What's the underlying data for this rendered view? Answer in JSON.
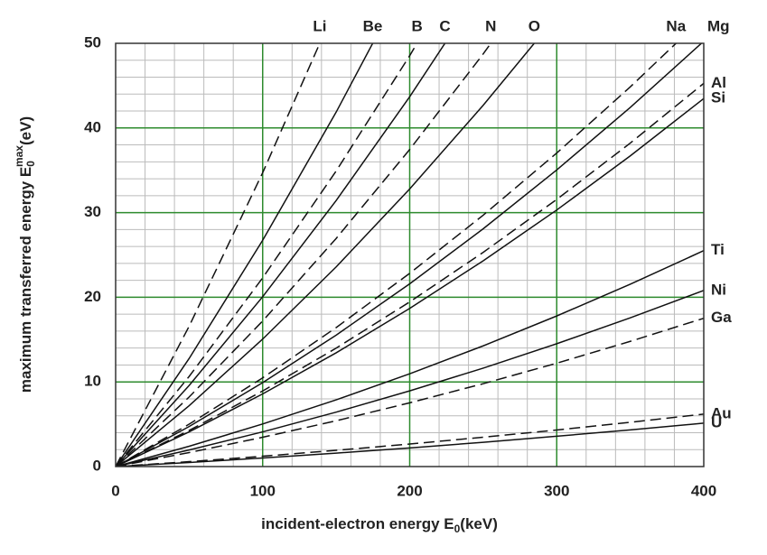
{
  "chart_data": {
    "type": "line",
    "xlabel": {
      "text": "incident-electron energy E",
      "sub": "0",
      "unit": "(keV)"
    },
    "ylabel": {
      "text": "maximum transferred energy E",
      "sub": "0",
      "sup": "max",
      "unit": "(eV)"
    },
    "xlim": [
      0,
      400
    ],
    "ylim": [
      0,
      50
    ],
    "xticks": [
      0,
      100,
      200,
      300,
      400
    ],
    "yticks": [
      0,
      10,
      20,
      30,
      40,
      50
    ],
    "grid": true,
    "grid_color": "#2e8b2e",
    "minor_grid": {
      "x": 20,
      "y": 2,
      "color": "#bbbbbb"
    },
    "series": [
      {
        "name": "Li",
        "color": "#111111",
        "dashed": true,
        "x": [
          0,
          50,
          100,
          150
        ],
        "values": [
          0,
          16.58,
          34.71,
          54.39
        ]
      },
      {
        "name": "Be",
        "color": "#111111",
        "dashed": false,
        "x": [
          0,
          50,
          100,
          150,
          200
        ],
        "values": [
          0,
          12.77,
          26.73,
          41.88,
          58.23
        ]
      },
      {
        "name": "B",
        "color": "#111111",
        "dashed": true,
        "x": [
          0,
          50,
          100,
          150,
          200,
          250
        ],
        "values": [
          0,
          10.65,
          22.29,
          34.92,
          48.54,
          63.16
        ]
      },
      {
        "name": "C",
        "color": "#111111",
        "dashed": false,
        "x": [
          0,
          50,
          100,
          150,
          200,
          250
        ],
        "values": [
          0,
          9.58,
          20.06,
          31.43,
          43.69,
          56.85
        ]
      },
      {
        "name": "N",
        "color": "#111111",
        "dashed": true,
        "x": [
          0,
          50,
          100,
          150,
          200,
          250,
          300
        ],
        "values": [
          0,
          8.22,
          17.2,
          26.95,
          37.46,
          48.75,
          60.79
        ]
      },
      {
        "name": "O",
        "color": "#111111",
        "dashed": false,
        "x": [
          0,
          50,
          100,
          150,
          200,
          250,
          300
        ],
        "values": [
          0,
          7.19,
          15.06,
          23.59,
          32.8,
          42.68,
          53.22
        ]
      },
      {
        "name": "Na",
        "color": "#111111",
        "dashed": true,
        "x": [
          0,
          50,
          100,
          150,
          200,
          250,
          300,
          350,
          400
        ],
        "values": [
          0,
          5.01,
          10.48,
          16.42,
          22.83,
          29.7,
          37.04,
          44.85,
          53.12
        ]
      },
      {
        "name": "Mg",
        "color": "#111111",
        "dashed": false,
        "x": [
          0,
          50,
          100,
          150,
          200,
          250,
          300,
          350,
          400
        ],
        "values": [
          0,
          4.73,
          9.91,
          15.53,
          21.59,
          28.09,
          35.04,
          42.42,
          50.25
        ]
      },
      {
        "name": "Al",
        "color": "#111111",
        "dashed": true,
        "x": [
          0,
          50,
          100,
          150,
          200,
          250,
          300,
          350,
          400
        ],
        "values": [
          0,
          4.27,
          8.93,
          13.99,
          19.45,
          25.31,
          31.56,
          38.21,
          45.27
        ]
      },
      {
        "name": "Si",
        "color": "#111111",
        "dashed": false,
        "x": [
          0,
          50,
          100,
          150,
          200,
          250,
          300,
          350,
          400
        ],
        "values": [
          0,
          4.1,
          8.58,
          13.44,
          18.68,
          24.31,
          30.31,
          36.7,
          43.48
        ]
      },
      {
        "name": "Ti",
        "color": "#111111",
        "dashed": false,
        "x": [
          0,
          50,
          100,
          150,
          200,
          250,
          300,
          350,
          400
        ],
        "values": [
          0,
          2.4,
          5.03,
          7.88,
          10.96,
          14.26,
          17.79,
          21.54,
          25.51
        ]
      },
      {
        "name": "Ni",
        "color": "#111111",
        "dashed": false,
        "x": [
          0,
          50,
          100,
          150,
          200,
          250,
          300,
          350,
          400
        ],
        "values": [
          0,
          1.96,
          4.1,
          6.43,
          8.94,
          11.63,
          14.51,
          17.57,
          20.81
        ]
      },
      {
        "name": "Ga",
        "color": "#111111",
        "dashed": true,
        "x": [
          0,
          50,
          100,
          150,
          200,
          250,
          300,
          350,
          400
        ],
        "values": [
          0,
          1.65,
          3.46,
          5.41,
          7.53,
          9.79,
          12.21,
          14.79,
          17.52
        ]
      },
      {
        "name": "Au",
        "color": "#111111",
        "dashed": true,
        "x": [
          0,
          50,
          100,
          150,
          200,
          250,
          300,
          350,
          400
        ],
        "values": [
          0,
          0.58,
          1.22,
          1.92,
          2.66,
          3.47,
          4.32,
          5.23,
          6.2
        ]
      },
      {
        "name": "U",
        "color": "#111111",
        "dashed": false,
        "x": [
          0,
          50,
          100,
          150,
          200,
          250,
          300,
          350,
          400
        ],
        "values": [
          0,
          0.48,
          1.01,
          1.59,
          2.2,
          2.87,
          3.58,
          4.33,
          5.13
        ]
      }
    ]
  }
}
